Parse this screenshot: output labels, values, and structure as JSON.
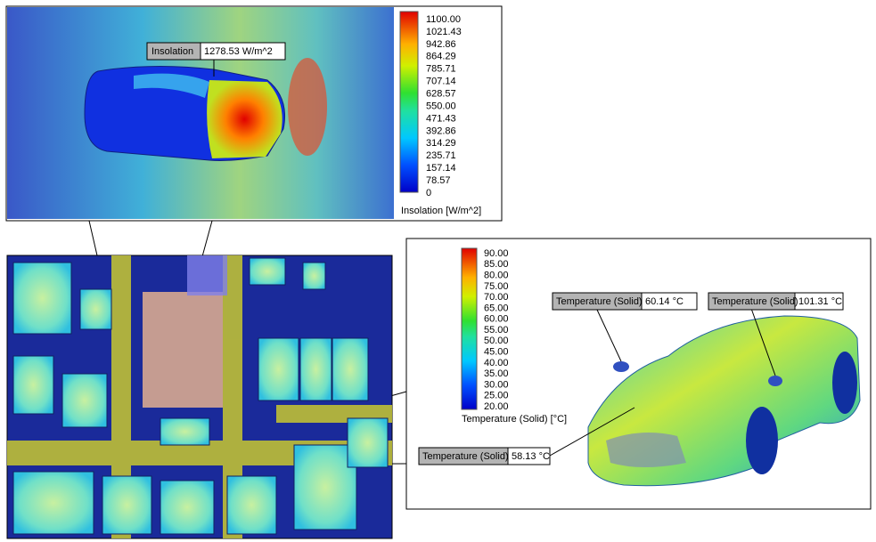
{
  "insolation_panel": {
    "colorbar": {
      "title": "Insolation [W/m^2]",
      "labels": [
        "1100.00",
        "1021.43",
        "942.86",
        "864.29",
        "785.71",
        "707.14",
        "628.57",
        "550.00",
        "471.43",
        "392.86",
        "314.29",
        "235.71",
        "157.14",
        "78.57",
        "0"
      ]
    },
    "callout": {
      "label": "Insolation",
      "value": "1278.53 W/m^2"
    }
  },
  "temperature_panel": {
    "colorbar": {
      "title": "Temperature (Solid) [°C]",
      "labels": [
        "90.00",
        "85.00",
        "80.00",
        "75.00",
        "70.00",
        "65.00",
        "60.00",
        "55.00",
        "50.00",
        "45.00",
        "40.00",
        "35.00",
        "30.00",
        "25.00",
        "20.00"
      ]
    },
    "callouts": [
      {
        "label": "Temperature (Solid)",
        "value": "60.14 °C"
      },
      {
        "label": "Temperature (Solid)",
        "value": "101.31 °C"
      },
      {
        "label": "Temperature (Solid)",
        "value": "58.13 °C"
      }
    ]
  }
}
